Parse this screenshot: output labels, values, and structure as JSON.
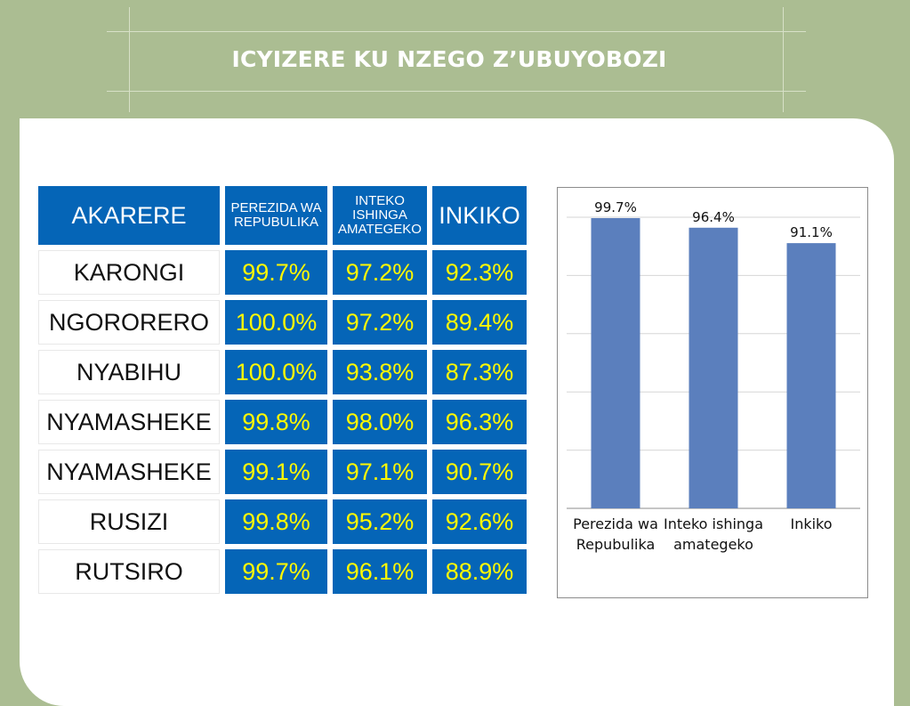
{
  "title": "ICYIZERE KU NZEGO Z’UBUYOBOZI",
  "table": {
    "headers": [
      "AKARERE",
      "PEREZIDA WA REPUBULIKA",
      "INTEKO ISHINGA AMATEGEKO",
      "INKIKO"
    ],
    "rows": [
      {
        "district": "KARONGI",
        "values": [
          "99.7%",
          "97.2%",
          "92.3%"
        ]
      },
      {
        "district": "NGORORERO",
        "values": [
          "100.0%",
          "97.2%",
          "89.4%"
        ]
      },
      {
        "district": "NYABIHU",
        "values": [
          "100.0%",
          "93.8%",
          "87.3%"
        ]
      },
      {
        "district": "NYAMASHEKE",
        "values": [
          "99.8%",
          "98.0%",
          "96.3%"
        ]
      },
      {
        "district": "NYAMASHEKE",
        "values": [
          "99.1%",
          "97.1%",
          "90.7%"
        ]
      },
      {
        "district": "RUSIZI",
        "values": [
          "99.8%",
          "95.2%",
          "92.6%"
        ]
      },
      {
        "district": "RUTSIRO",
        "values": [
          "99.7%",
          "96.1%",
          "88.9%"
        ]
      }
    ]
  },
  "chart_data": {
    "type": "bar",
    "categories": [
      "Perezida wa Repubulika",
      "Inteko ishinga amategeko",
      "Inkiko"
    ],
    "values": [
      99.7,
      96.4,
      91.1
    ],
    "data_labels": [
      "99.7%",
      "96.4%",
      "91.1%"
    ],
    "ylim": [
      0,
      100
    ],
    "grid": true,
    "legend": "none",
    "colors": {
      "bar": "#5b7fbd",
      "grid": "#d6d6d6",
      "axis": "#8c8c8c"
    }
  },
  "colors": {
    "background": "#abbd92",
    "table_blue": "#0565b7",
    "value_yellow": "#fff800"
  }
}
